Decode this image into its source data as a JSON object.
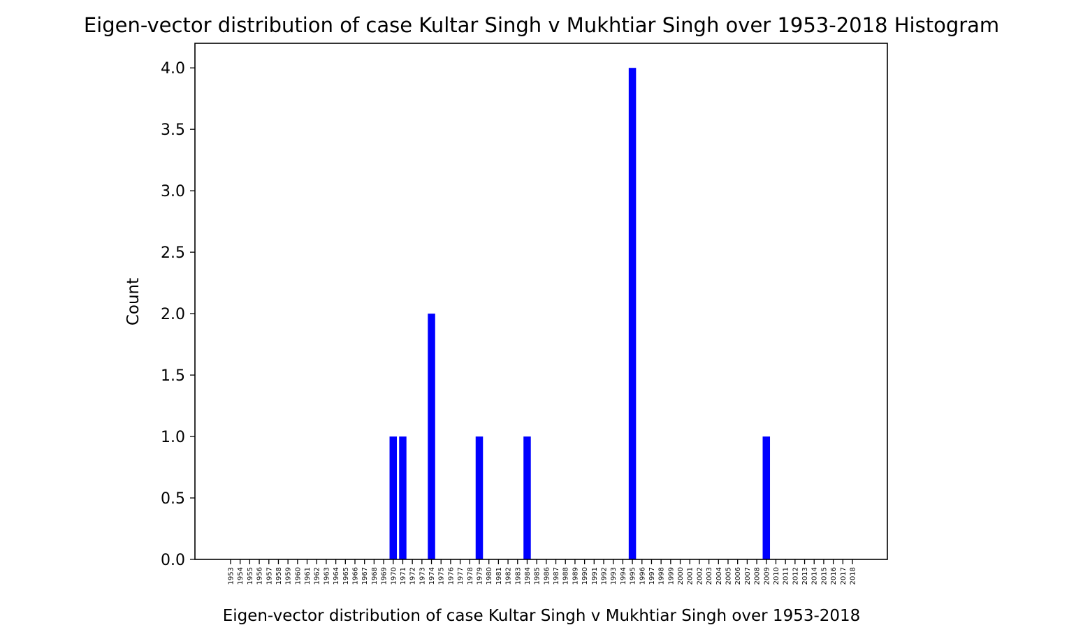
{
  "chart_data": {
    "type": "bar",
    "title": "Eigen-vector distribution of case Kultar Singh v Mukhtiar Singh over 1953-2018 Histogram",
    "xlabel": "Eigen-vector distribution of case Kultar Singh v Mukhtiar Singh over 1953-2018",
    "ylabel": "Count",
    "categories": [
      "1953",
      "1954",
      "1955",
      "1956",
      "1957",
      "1958",
      "1959",
      "1960",
      "1961",
      "1962",
      "1963",
      "1964",
      "1965",
      "1966",
      "1967",
      "1968",
      "1969",
      "1970",
      "1971",
      "1972",
      "1973",
      "1974",
      "1975",
      "1976",
      "1977",
      "1978",
      "1979",
      "1980",
      "1981",
      "1982",
      "1983",
      "1984",
      "1985",
      "1986",
      "1987",
      "1988",
      "1989",
      "1990",
      "1991",
      "1992",
      "1993",
      "1994",
      "1995",
      "1996",
      "1997",
      "1998",
      "1999",
      "2000",
      "2001",
      "2002",
      "2003",
      "2004",
      "2005",
      "2006",
      "2007",
      "2008",
      "2009",
      "2010",
      "2011",
      "2012",
      "2013",
      "2014",
      "2015",
      "2016",
      "2017",
      "2018"
    ],
    "values": [
      0,
      0,
      0,
      0,
      0,
      0,
      0,
      0,
      0,
      0,
      0,
      0,
      0,
      0,
      0,
      0,
      0,
      1,
      1,
      0,
      0,
      2,
      0,
      0,
      0,
      0,
      1,
      0,
      0,
      0,
      0,
      1,
      0,
      0,
      0,
      0,
      0,
      0,
      0,
      0,
      0,
      0,
      4,
      0,
      0,
      0,
      0,
      0,
      0,
      0,
      0,
      0,
      0,
      0,
      0,
      0,
      1,
      0,
      0,
      0,
      0,
      0,
      0,
      0,
      0,
      0
    ],
    "ylim": [
      0,
      4.2
    ],
    "yticks": [
      "0.0",
      "0.5",
      "1.0",
      "1.5",
      "2.0",
      "2.5",
      "3.0",
      "3.5",
      "4.0"
    ],
    "grid": false,
    "bar_color": "#0000ff"
  }
}
